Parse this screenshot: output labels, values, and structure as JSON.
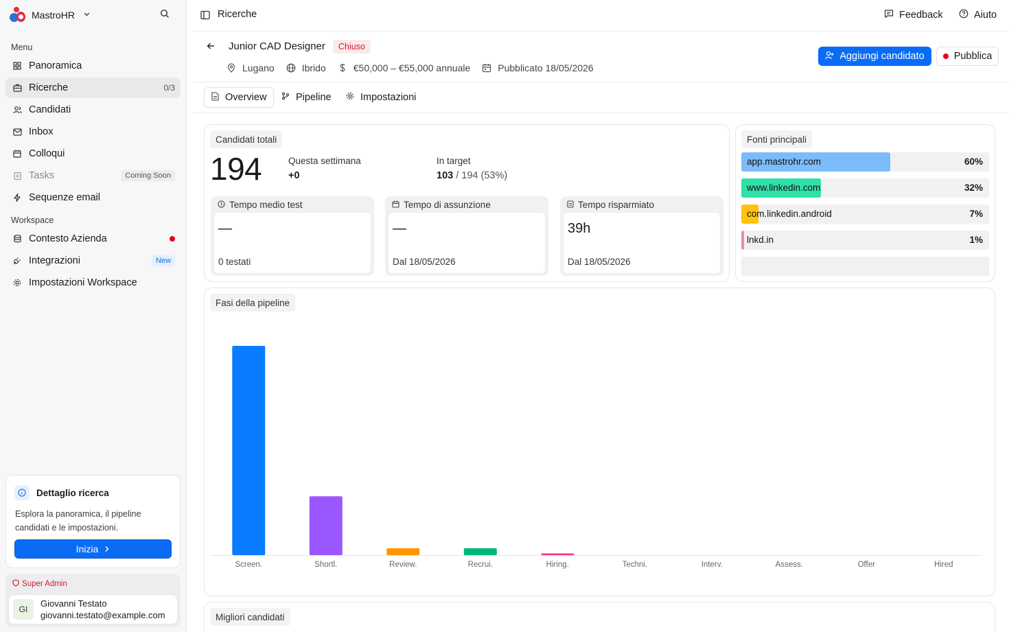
{
  "brand": {
    "name": "MastroHR"
  },
  "sidebar": {
    "menu_label": "Menu",
    "items": [
      {
        "label": "Panoramica",
        "icon": "grid-icon"
      },
      {
        "label": "Ricerche",
        "icon": "briefcase-icon",
        "count": "0/3",
        "active": true
      },
      {
        "label": "Candidati",
        "icon": "users-icon"
      },
      {
        "label": "Inbox",
        "icon": "mail-icon"
      },
      {
        "label": "Colloqui",
        "icon": "calendar-icon"
      },
      {
        "label": "Tasks",
        "icon": "clipboard-icon",
        "badge": "Coming Soon",
        "disabled": true
      },
      {
        "label": "Sequenze email",
        "icon": "bolt-icon"
      }
    ],
    "workspace_label": "Workspace",
    "workspace_items": [
      {
        "label": "Contesto Azienda",
        "icon": "database-icon",
        "dot": true
      },
      {
        "label": "Integrazioni",
        "icon": "plug-icon",
        "badge": "New"
      },
      {
        "label": "Impostazioni Workspace",
        "icon": "gear-icon"
      }
    ]
  },
  "help_card": {
    "title": "Dettaglio ricerca",
    "text": "Esplora la panoramica, il pipeline candidati e le impostazioni.",
    "button": "Inizia"
  },
  "user": {
    "role": "Super Admin",
    "initials": "GI",
    "name": "Giovanni Testato",
    "email": "giovanni.testato@example.com"
  },
  "topbar": {
    "title": "Ricerche",
    "feedback": "Feedback",
    "help": "Aiuto"
  },
  "job": {
    "title": "Junior CAD Designer",
    "status": "Chiuso",
    "location": "Lugano",
    "mode": "Ibrido",
    "salary": "€50,000 – €55,000 annuale",
    "published": "Pubblicato 18/05/2026",
    "add_button": "Aggiungi candidato",
    "publish_button": "Pubblica"
  },
  "tabs": [
    {
      "label": "Overview",
      "icon": "document-icon",
      "active": true
    },
    {
      "label": "Pipeline",
      "icon": "pipeline-icon"
    },
    {
      "label": "Impostazioni",
      "icon": "gear-icon"
    }
  ],
  "stats": {
    "title": "Candidati totali",
    "total": "194",
    "week_label": "Questa settimana",
    "week_value": "+0",
    "target_label": "In target",
    "target_value": "103",
    "target_rest": "/ 194 (53%)",
    "cards": [
      {
        "label": "Tempo medio test",
        "icon": "clock-icon",
        "value": "—",
        "sub": "0 testati"
      },
      {
        "label": "Tempo di assunzione",
        "icon": "calendar-icon",
        "value": "—",
        "sub": "Dal 18/05/2026"
      },
      {
        "label": "Tempo risparmiato",
        "icon": "clipboard-icon",
        "value": "39h",
        "sub": "Dal 18/05/2026"
      }
    ]
  },
  "sources": {
    "title": "Fonti principali",
    "items": [
      {
        "name": "app.mastrohr.com",
        "pct": "60%",
        "value": 0.6,
        "color": "#7cbcfb"
      },
      {
        "name": "www.linkedin.com",
        "pct": "32%",
        "value": 0.32,
        "color": "#2fe0a8"
      },
      {
        "name": "com.linkedin.android",
        "pct": "7%",
        "value": 0.07,
        "color": "#ffc20e"
      },
      {
        "name": "lnkd.in",
        "pct": "1%",
        "value": 0.01,
        "color": "#f58a9b"
      }
    ]
  },
  "pipeline": {
    "title": "Fasi della pipeline"
  },
  "chart_data": {
    "type": "bar",
    "categories": [
      "Screen.",
      "Shortl.",
      "Review.",
      "Recrui.",
      "Hiring.",
      "Techni.",
      "Interv.",
      "Assess.",
      "Offer",
      "Hired"
    ],
    "values": [
      121,
      34,
      4,
      4,
      1,
      0,
      0,
      0,
      0,
      0
    ],
    "colors": [
      "#0a7cff",
      "#9b57ff",
      "#ff9500",
      "#00b877",
      "#ff2d8a",
      "#cccccc",
      "#cccccc",
      "#cccccc",
      "#cccccc",
      "#cccccc"
    ],
    "title": "Fasi della pipeline",
    "xlabel": "",
    "ylabel": "",
    "ylim": [
      0,
      121
    ],
    "grid": false
  },
  "best": {
    "title": "Migliori candidati"
  }
}
